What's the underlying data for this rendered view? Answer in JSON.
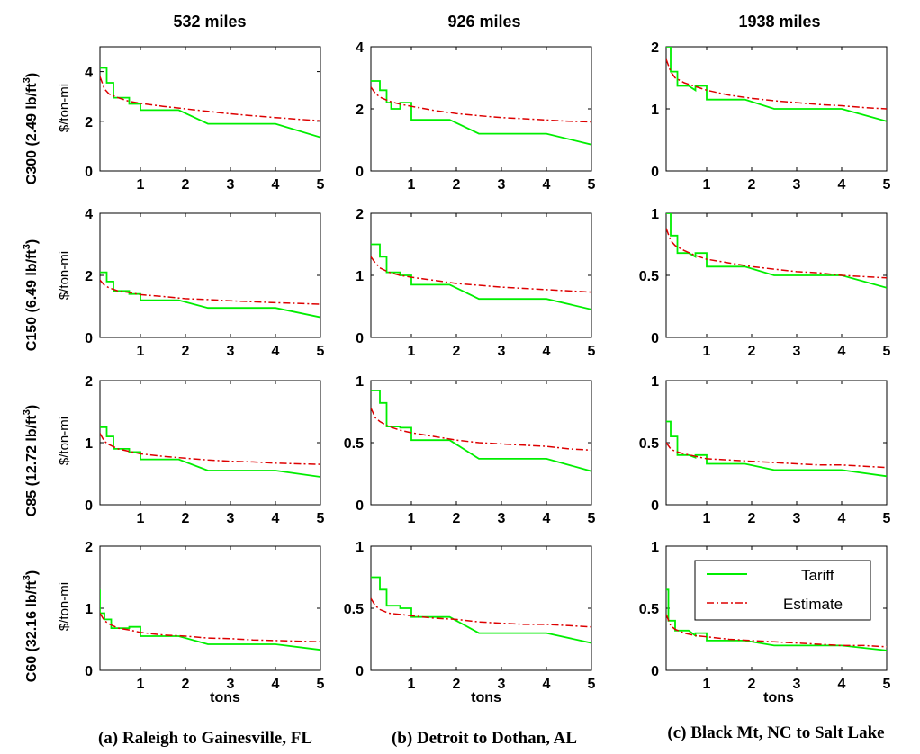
{
  "figure": {
    "column_titles": [
      "532 miles",
      "926 miles",
      "1938 miles"
    ],
    "row_labels": [
      "C300 (2.49 lb/ft",
      "C150 (6.49 lb/ft",
      "C85 (12.72 lb/ft",
      "C60 (32.16 lb/ft"
    ],
    "row_label_sup": "3",
    "row_label_close": ")",
    "ylabel_unit": "$/ton-mi",
    "xlabel": "tons",
    "captions": [
      "(a) Raleigh to Gainesville, FL",
      "(b) Detroit to Dothan, AL",
      "(c) Black Mt, NC to Salt Lake"
    ],
    "legend": {
      "entries": [
        "Tariff",
        "Estimate"
      ],
      "placement": "top-right of bottom-right panel"
    },
    "colors": {
      "tariff": "#00ee00",
      "estimate": "#dd0000"
    }
  },
  "chart_data": {
    "type": "line",
    "grid": false,
    "xlim": [
      0.1,
      5
    ],
    "xticks": [
      1,
      2,
      3,
      4,
      5
    ],
    "panels": [
      {
        "row": 0,
        "col": 0,
        "ylim": [
          0,
          5
        ],
        "yticks": [
          0,
          2,
          4
        ],
        "series": [
          {
            "name": "Tariff",
            "x": [
              0.1,
              0.25,
              0.25,
              0.4,
              0.4,
              0.75,
              0.75,
              1.0,
              1.0,
              1.85,
              2.5,
              4.0,
              5.0
            ],
            "y": [
              4.15,
              4.15,
              3.55,
              3.55,
              2.95,
              2.95,
              2.7,
              2.7,
              2.45,
              2.45,
              1.9,
              1.9,
              1.35
            ]
          },
          {
            "name": "Estimate",
            "x": [
              0.1,
              0.2,
              0.3,
              0.5,
              0.75,
              1.0,
              1.5,
              2.0,
              2.5,
              3.0,
              3.5,
              4.0,
              4.5,
              5.0
            ],
            "y": [
              3.8,
              3.3,
              3.1,
              2.95,
              2.8,
              2.72,
              2.6,
              2.5,
              2.4,
              2.3,
              2.22,
              2.15,
              2.08,
              2.02
            ]
          }
        ]
      },
      {
        "row": 0,
        "col": 1,
        "ylim": [
          0,
          4
        ],
        "yticks": [
          0,
          2,
          4
        ],
        "series": [
          {
            "name": "Tariff",
            "x": [
              0.1,
              0.3,
              0.3,
              0.45,
              0.45,
              0.55,
              0.55,
              0.75,
              0.75,
              1.0,
              1.0,
              1.85,
              2.5,
              4.0,
              5.0
            ],
            "y": [
              2.9,
              2.9,
              2.6,
              2.6,
              2.2,
              2.2,
              2.0,
              2.0,
              2.2,
              2.2,
              1.65,
              1.65,
              1.2,
              1.2,
              0.85
            ]
          },
          {
            "name": "Estimate",
            "x": [
              0.1,
              0.2,
              0.3,
              0.5,
              0.75,
              1.0,
              1.5,
              2.0,
              2.5,
              3.0,
              3.5,
              4.0,
              4.5,
              5.0
            ],
            "y": [
              2.7,
              2.5,
              2.38,
              2.25,
              2.15,
              2.08,
              1.95,
              1.85,
              1.78,
              1.72,
              1.68,
              1.64,
              1.6,
              1.58
            ]
          }
        ]
      },
      {
        "row": 0,
        "col": 2,
        "ylim": [
          0,
          2
        ],
        "yticks": [
          0,
          1,
          2
        ],
        "series": [
          {
            "name": "Tariff",
            "x": [
              0.1,
              0.2,
              0.2,
              0.35,
              0.35,
              0.6,
              0.75,
              0.75,
              1.0,
              1.0,
              1.85,
              2.5,
              4.0,
              5.0
            ],
            "y": [
              2.0,
              2.0,
              1.6,
              1.6,
              1.37,
              1.37,
              1.3,
              1.37,
              1.37,
              1.15,
              1.15,
              1.0,
              1.0,
              0.8
            ]
          },
          {
            "name": "Estimate",
            "x": [
              0.1,
              0.2,
              0.3,
              0.5,
              0.75,
              1.0,
              1.5,
              2.0,
              2.5,
              3.0,
              3.5,
              4.0,
              4.5,
              5.0
            ],
            "y": [
              1.8,
              1.6,
              1.5,
              1.42,
              1.36,
              1.3,
              1.22,
              1.17,
              1.13,
              1.1,
              1.07,
              1.05,
              1.02,
              1.0
            ]
          }
        ]
      },
      {
        "row": 1,
        "col": 0,
        "ylim": [
          0,
          4
        ],
        "yticks": [
          0,
          2,
          4
        ],
        "series": [
          {
            "name": "Tariff",
            "x": [
              0.1,
              0.25,
              0.25,
              0.4,
              0.4,
              0.75,
              0.75,
              1.0,
              1.0,
              1.85,
              2.5,
              4.0,
              5.0
            ],
            "y": [
              2.1,
              2.1,
              1.8,
              1.8,
              1.5,
              1.5,
              1.4,
              1.4,
              1.2,
              1.2,
              0.95,
              0.95,
              0.65
            ]
          },
          {
            "name": "Estimate",
            "x": [
              0.1,
              0.2,
              0.3,
              0.5,
              0.75,
              1.0,
              1.5,
              2.0,
              2.5,
              3.0,
              3.5,
              4.0,
              4.5,
              5.0
            ],
            "y": [
              1.85,
              1.68,
              1.6,
              1.5,
              1.45,
              1.38,
              1.32,
              1.25,
              1.22,
              1.18,
              1.15,
              1.12,
              1.1,
              1.07
            ]
          }
        ]
      },
      {
        "row": 1,
        "col": 1,
        "ylim": [
          0,
          2
        ],
        "yticks": [
          0,
          1,
          2
        ],
        "series": [
          {
            "name": "Tariff",
            "x": [
              0.1,
              0.3,
              0.3,
              0.45,
              0.45,
              0.75,
              0.75,
              1.0,
              1.0,
              1.85,
              2.5,
              4.0,
              5.0
            ],
            "y": [
              1.5,
              1.5,
              1.3,
              1.3,
              1.05,
              1.05,
              1.0,
              1.0,
              0.85,
              0.85,
              0.62,
              0.62,
              0.45
            ]
          },
          {
            "name": "Estimate",
            "x": [
              0.1,
              0.2,
              0.3,
              0.5,
              0.75,
              1.0,
              1.5,
              2.0,
              2.5,
              3.0,
              3.5,
              4.0,
              4.5,
              5.0
            ],
            "y": [
              1.3,
              1.2,
              1.12,
              1.05,
              1.0,
              0.97,
              0.92,
              0.87,
              0.84,
              0.81,
              0.79,
              0.77,
              0.75,
              0.73
            ]
          }
        ]
      },
      {
        "row": 1,
        "col": 2,
        "ylim": [
          0,
          1
        ],
        "yticks": [
          0,
          0.5,
          1
        ],
        "series": [
          {
            "name": "Tariff",
            "x": [
              0.1,
              0.2,
              0.2,
              0.35,
              0.35,
              0.6,
              0.75,
              0.75,
              1.0,
              1.0,
              1.85,
              2.5,
              4.0,
              5.0
            ],
            "y": [
              1.0,
              1.0,
              0.82,
              0.82,
              0.68,
              0.68,
              0.65,
              0.68,
              0.68,
              0.57,
              0.57,
              0.5,
              0.5,
              0.4
            ]
          },
          {
            "name": "Estimate",
            "x": [
              0.1,
              0.2,
              0.3,
              0.5,
              0.75,
              1.0,
              1.5,
              2.0,
              2.5,
              3.0,
              3.5,
              4.0,
              4.5,
              5.0
            ],
            "y": [
              0.88,
              0.78,
              0.74,
              0.7,
              0.66,
              0.63,
              0.6,
              0.57,
              0.55,
              0.53,
              0.52,
              0.5,
              0.49,
              0.48
            ]
          }
        ]
      },
      {
        "row": 2,
        "col": 0,
        "ylim": [
          0,
          2
        ],
        "yticks": [
          0,
          1,
          2
        ],
        "series": [
          {
            "name": "Tariff",
            "x": [
              0.1,
              0.25,
              0.25,
              0.4,
              0.4,
              0.75,
              0.75,
              1.0,
              1.0,
              1.85,
              2.5,
              4.0,
              5.0
            ],
            "y": [
              1.25,
              1.25,
              1.1,
              1.1,
              0.9,
              0.9,
              0.85,
              0.85,
              0.73,
              0.73,
              0.55,
              0.55,
              0.45
            ]
          },
          {
            "name": "Estimate",
            "x": [
              0.1,
              0.2,
              0.3,
              0.5,
              0.75,
              1.0,
              1.5,
              2.0,
              2.5,
              3.0,
              3.5,
              4.0,
              4.5,
              5.0
            ],
            "y": [
              1.15,
              1.02,
              0.97,
              0.9,
              0.86,
              0.82,
              0.78,
              0.75,
              0.72,
              0.7,
              0.69,
              0.67,
              0.66,
              0.65
            ]
          }
        ]
      },
      {
        "row": 2,
        "col": 1,
        "ylim": [
          0,
          1
        ],
        "yticks": [
          0,
          0.5,
          1
        ],
        "series": [
          {
            "name": "Tariff",
            "x": [
              0.1,
              0.3,
              0.3,
              0.45,
              0.45,
              0.75,
              0.75,
              1.0,
              1.0,
              1.85,
              2.5,
              4.0,
              5.0
            ],
            "y": [
              0.92,
              0.92,
              0.82,
              0.82,
              0.63,
              0.63,
              0.62,
              0.62,
              0.52,
              0.52,
              0.37,
              0.37,
              0.27
            ]
          },
          {
            "name": "Estimate",
            "x": [
              0.1,
              0.2,
              0.3,
              0.5,
              0.75,
              1.0,
              1.5,
              2.0,
              2.5,
              3.0,
              3.5,
              4.0,
              4.5,
              5.0
            ],
            "y": [
              0.78,
              0.7,
              0.67,
              0.63,
              0.6,
              0.58,
              0.55,
              0.52,
              0.5,
              0.49,
              0.48,
              0.47,
              0.45,
              0.44
            ]
          }
        ]
      },
      {
        "row": 2,
        "col": 2,
        "ylim": [
          0,
          1
        ],
        "yticks": [
          0,
          0.5,
          1
        ],
        "series": [
          {
            "name": "Tariff",
            "x": [
              0.1,
              0.2,
              0.2,
              0.35,
              0.35,
              0.6,
              0.75,
              0.75,
              1.0,
              1.0,
              1.85,
              2.5,
              4.0,
              5.0
            ],
            "y": [
              0.67,
              0.67,
              0.55,
              0.55,
              0.4,
              0.4,
              0.38,
              0.4,
              0.4,
              0.33,
              0.33,
              0.28,
              0.28,
              0.23
            ]
          },
          {
            "name": "Estimate",
            "x": [
              0.1,
              0.2,
              0.3,
              0.5,
              0.75,
              1.0,
              1.5,
              2.0,
              2.5,
              3.0,
              3.5,
              4.0,
              4.5,
              5.0
            ],
            "y": [
              0.5,
              0.45,
              0.43,
              0.41,
              0.39,
              0.37,
              0.36,
              0.35,
              0.34,
              0.33,
              0.32,
              0.32,
              0.31,
              0.3
            ]
          }
        ]
      },
      {
        "row": 3,
        "col": 0,
        "ylim": [
          0,
          2
        ],
        "yticks": [
          0,
          1,
          2
        ],
        "series": [
          {
            "name": "Tariff",
            "x": [
              0.1,
              0.1,
              0.2,
              0.2,
              0.35,
              0.35,
              0.75,
              0.75,
              1.0,
              1.0,
              1.85,
              2.5,
              4.0,
              5.0
            ],
            "y": [
              1.3,
              0.92,
              0.92,
              0.82,
              0.82,
              0.68,
              0.68,
              0.7,
              0.7,
              0.55,
              0.55,
              0.42,
              0.42,
              0.33
            ]
          },
          {
            "name": "Estimate",
            "x": [
              0.1,
              0.2,
              0.3,
              0.5,
              0.75,
              1.0,
              1.5,
              2.0,
              2.5,
              3.0,
              3.5,
              4.0,
              4.5,
              5.0
            ],
            "y": [
              0.92,
              0.8,
              0.75,
              0.68,
              0.65,
              0.61,
              0.57,
              0.55,
              0.52,
              0.51,
              0.49,
              0.48,
              0.47,
              0.46
            ]
          }
        ]
      },
      {
        "row": 3,
        "col": 1,
        "ylim": [
          0,
          1
        ],
        "yticks": [
          0,
          0.5,
          1
        ],
        "series": [
          {
            "name": "Tariff",
            "x": [
              0.1,
              0.3,
              0.3,
              0.45,
              0.45,
              0.75,
              0.75,
              1.0,
              1.0,
              1.85,
              2.5,
              4.0,
              5.0
            ],
            "y": [
              0.75,
              0.75,
              0.65,
              0.65,
              0.52,
              0.52,
              0.5,
              0.5,
              0.43,
              0.43,
              0.3,
              0.3,
              0.22
            ]
          },
          {
            "name": "Estimate",
            "x": [
              0.1,
              0.2,
              0.3,
              0.5,
              0.75,
              1.0,
              1.5,
              2.0,
              2.5,
              3.0,
              3.5,
              4.0,
              4.5,
              5.0
            ],
            "y": [
              0.58,
              0.52,
              0.49,
              0.46,
              0.45,
              0.44,
              0.42,
              0.41,
              0.39,
              0.38,
              0.37,
              0.37,
              0.36,
              0.35
            ]
          }
        ]
      },
      {
        "row": 3,
        "col": 2,
        "ylim": [
          0,
          1
        ],
        "yticks": [
          0,
          0.5,
          1
        ],
        "series": [
          {
            "name": "Tariff",
            "x": [
              0.1,
              0.15,
              0.15,
              0.3,
              0.3,
              0.6,
              0.75,
              0.75,
              1.0,
              1.0,
              1.85,
              2.5,
              4.0,
              5.0
            ],
            "y": [
              0.65,
              0.65,
              0.4,
              0.4,
              0.32,
              0.32,
              0.28,
              0.3,
              0.3,
              0.24,
              0.24,
              0.2,
              0.2,
              0.16
            ]
          },
          {
            "name": "Estimate",
            "x": [
              0.1,
              0.2,
              0.3,
              0.5,
              0.75,
              1.0,
              1.5,
              2.0,
              2.5,
              3.0,
              3.5,
              4.0,
              4.5,
              5.0
            ],
            "y": [
              0.45,
              0.36,
              0.33,
              0.3,
              0.28,
              0.27,
              0.25,
              0.24,
              0.23,
              0.22,
              0.21,
              0.2,
              0.2,
              0.19
            ]
          }
        ]
      }
    ]
  }
}
